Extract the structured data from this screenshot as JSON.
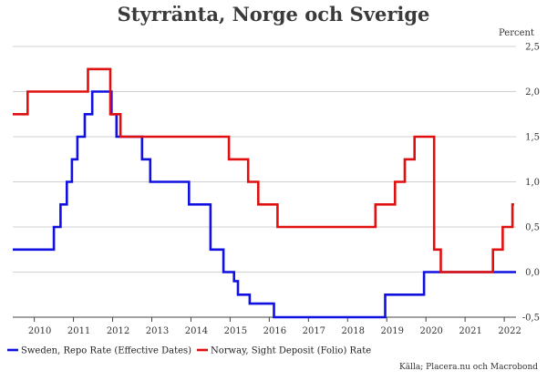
{
  "chart_data": {
    "type": "line",
    "title": "Styrränta, Norge och Sverige",
    "ylabel": "Percent",
    "source": "Källa; Placera.nu och Macrobond",
    "xlim": [
      2009.45,
      2022.3
    ],
    "ylim": [
      -0.5,
      2.5
    ],
    "y_ticks": [
      -0.5,
      0.0,
      0.5,
      1.0,
      1.5,
      2.0,
      2.5
    ],
    "y_tick_labels": [
      "-0,5",
      "0,0",
      "0,5",
      "1,0",
      "1,5",
      "2,0",
      "2,5"
    ],
    "x_ticks": [
      2010,
      2011,
      2012,
      2013,
      2014,
      2015,
      2016,
      2017,
      2018,
      2019,
      2020,
      2021,
      2022
    ],
    "x_tick_labels": [
      "2010",
      "2011",
      "2012",
      "2013",
      "2014",
      "2015",
      "2016",
      "2017",
      "2018",
      "2019",
      "2020",
      "2021",
      "2022"
    ],
    "grid": "horizontal",
    "legend_position": "bottom",
    "series": [
      {
        "name": "Sweden, Repo Rate (Effective Dates)",
        "color": "#1010e0",
        "step": true,
        "points": [
          [
            2009.45,
            0.25
          ],
          [
            2010.5,
            0.5
          ],
          [
            2010.67,
            0.75
          ],
          [
            2010.83,
            1.0
          ],
          [
            2010.96,
            1.25
          ],
          [
            2011.1,
            1.5
          ],
          [
            2011.29,
            1.75
          ],
          [
            2011.48,
            2.0
          ],
          [
            2011.97,
            1.75
          ],
          [
            2012.1,
            1.5
          ],
          [
            2012.75,
            1.25
          ],
          [
            2012.96,
            1.0
          ],
          [
            2013.95,
            0.75
          ],
          [
            2014.5,
            0.25
          ],
          [
            2014.83,
            0.0
          ],
          [
            2015.1,
            -0.1
          ],
          [
            2015.2,
            -0.25
          ],
          [
            2015.5,
            -0.35
          ],
          [
            2016.12,
            -0.5
          ],
          [
            2018.96,
            -0.25
          ],
          [
            2019.95,
            0.0
          ],
          [
            2022.3,
            0.0
          ]
        ]
      },
      {
        "name": "Norway, Sight Deposit (Folio) Rate",
        "color": "#e01010",
        "step": true,
        "points": [
          [
            2009.45,
            1.75
          ],
          [
            2009.83,
            2.0
          ],
          [
            2011.37,
            2.25
          ],
          [
            2011.94,
            1.75
          ],
          [
            2012.2,
            1.5
          ],
          [
            2014.97,
            1.25
          ],
          [
            2015.46,
            1.0
          ],
          [
            2015.72,
            0.75
          ],
          [
            2016.21,
            0.5
          ],
          [
            2018.71,
            0.75
          ],
          [
            2019.21,
            1.0
          ],
          [
            2019.46,
            1.25
          ],
          [
            2019.71,
            1.5
          ],
          [
            2020.21,
            0.25
          ],
          [
            2020.38,
            0.0
          ],
          [
            2021.71,
            0.25
          ],
          [
            2021.96,
            0.5
          ],
          [
            2022.21,
            0.75
          ],
          [
            2022.25,
            0.75
          ]
        ]
      }
    ]
  }
}
